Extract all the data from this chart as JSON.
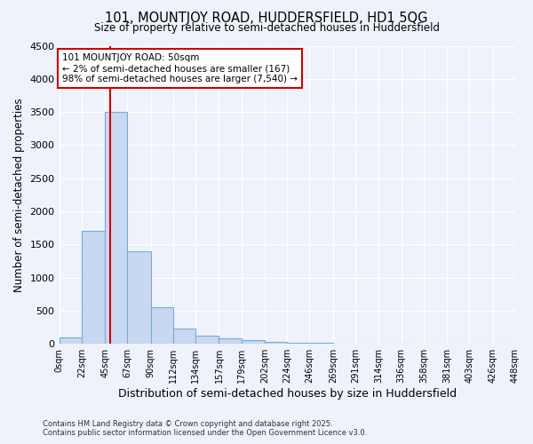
{
  "title_line1": "101, MOUNTJOY ROAD, HUDDERSFIELD, HD1 5QG",
  "title_line2": "Size of property relative to semi-detached houses in Huddersfield",
  "xlabel": "Distribution of semi-detached houses by size in Huddersfield",
  "ylabel": "Number of semi-detached properties",
  "annotation_line1": "101 MOUNTJOY ROAD: 50sqm",
  "annotation_line2": "← 2% of semi-detached houses are smaller (167)",
  "annotation_line3": "98% of semi-detached houses are larger (7,540) →",
  "footer_line1": "Contains HM Land Registry data © Crown copyright and database right 2025.",
  "footer_line2": "Contains public sector information licensed under the Open Government Licence v3.0.",
  "bar_values": [
    100,
    1700,
    3500,
    1400,
    550,
    230,
    130,
    80,
    60,
    30,
    20,
    10,
    5,
    0,
    0,
    0,
    0,
    0,
    0,
    0
  ],
  "bin_edges": [
    0,
    22,
    45,
    67,
    90,
    112,
    134,
    157,
    179,
    202,
    224,
    246,
    269,
    291,
    314,
    336,
    358,
    381,
    403,
    426,
    448
  ],
  "bin_labels": [
    "0sqm",
    "22sqm",
    "45sqm",
    "67sqm",
    "90sqm",
    "112sqm",
    "134sqm",
    "157sqm",
    "179sqm",
    "202sqm",
    "224sqm",
    "246sqm",
    "269sqm",
    "291sqm",
    "314sqm",
    "336sqm",
    "358sqm",
    "381sqm",
    "403sqm",
    "426sqm",
    "448sqm"
  ],
  "property_size": 50,
  "bar_color": "#c8d8f0",
  "bar_edge_color": "#7aaad8",
  "line_color": "#cc0000",
  "annotation_box_color": "#cc0000",
  "background_color": "#eef2fa",
  "ylim": [
    0,
    4500
  ],
  "yticks": [
    0,
    500,
    1000,
    1500,
    2000,
    2500,
    3000,
    3500,
    4000,
    4500
  ]
}
